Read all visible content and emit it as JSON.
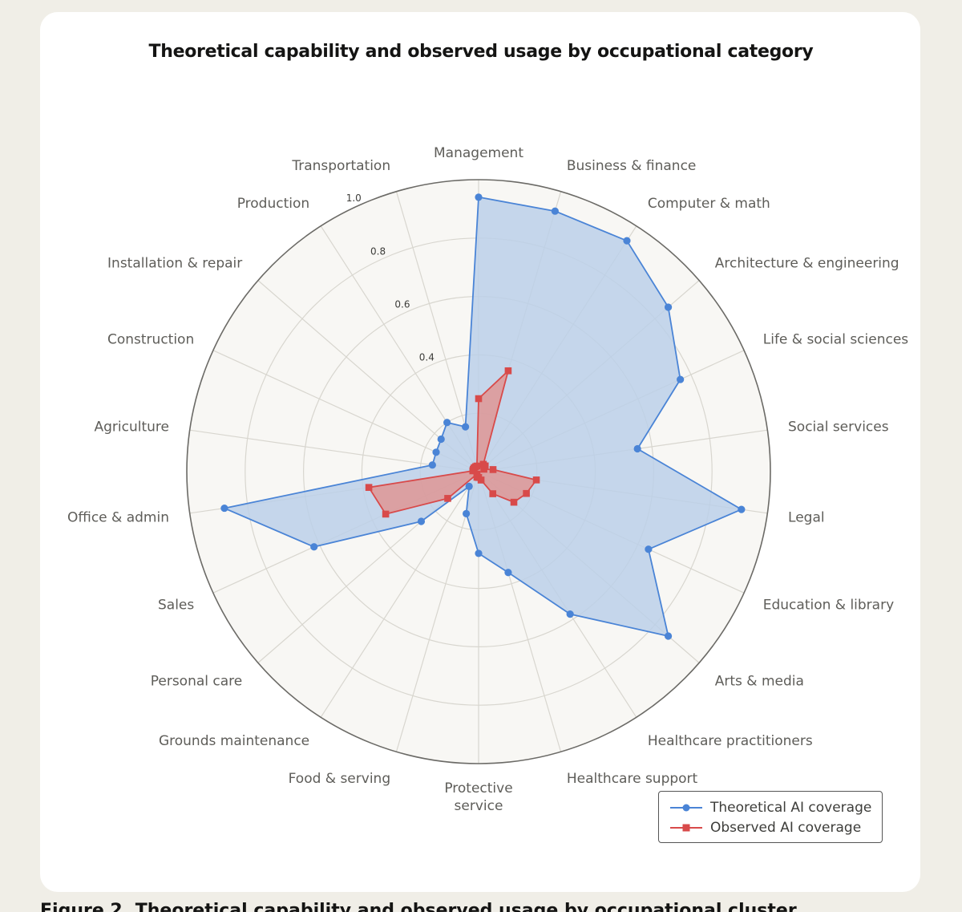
{
  "chart_data": {
    "type": "radar",
    "title": "Theoretical capability and observed usage by occupational category",
    "categories": [
      "Management",
      "Business & finance",
      "Computer & math",
      "Architecture & engineering",
      "Life & social sciences",
      "Social services",
      "Legal",
      "Education & library",
      "Arts & media",
      "Healthcare practitioners",
      "Healthcare support",
      "Protective service",
      "Food & serving",
      "Grounds maintenance",
      "Personal care",
      "Sales",
      "Office & admin",
      "Agriculture",
      "Construction",
      "Installation & repair",
      "Production",
      "Transportation"
    ],
    "radial_ticks": [
      "0.4",
      "0.6",
      "0.8",
      "1.0"
    ],
    "rlim": [
      0,
      1.0
    ],
    "grid": true,
    "legend_position": "bottom-right",
    "series": [
      {
        "name": "Theoretical AI coverage",
        "color": "#4a84d6",
        "fill": "#bcd0e9",
        "marker": "circle",
        "values": [
          0.94,
          0.93,
          0.94,
          0.86,
          0.76,
          0.55,
          0.91,
          0.64,
          0.86,
          0.58,
          0.36,
          0.28,
          0.15,
          0.06,
          0.26,
          0.62,
          0.88,
          0.16,
          0.16,
          0.17,
          0.2,
          0.16
        ]
      },
      {
        "name": "Observed AI coverage",
        "color": "#d84a4a",
        "fill": "#e28d8a",
        "marker": "square",
        "values": [
          0.25,
          0.36,
          0.03,
          0.03,
          0.02,
          0.05,
          0.2,
          0.18,
          0.16,
          0.09,
          0.03,
          0.02,
          0.02,
          0.01,
          0.14,
          0.35,
          0.38,
          0.02,
          0.02,
          0.02,
          0.02,
          0.02
        ]
      }
    ]
  },
  "legend": {
    "items": [
      "Theoretical AI coverage",
      "Observed AI coverage"
    ]
  },
  "caption_partial": "Figure 2. Theoretical capability and observed usage by occupational cluster"
}
